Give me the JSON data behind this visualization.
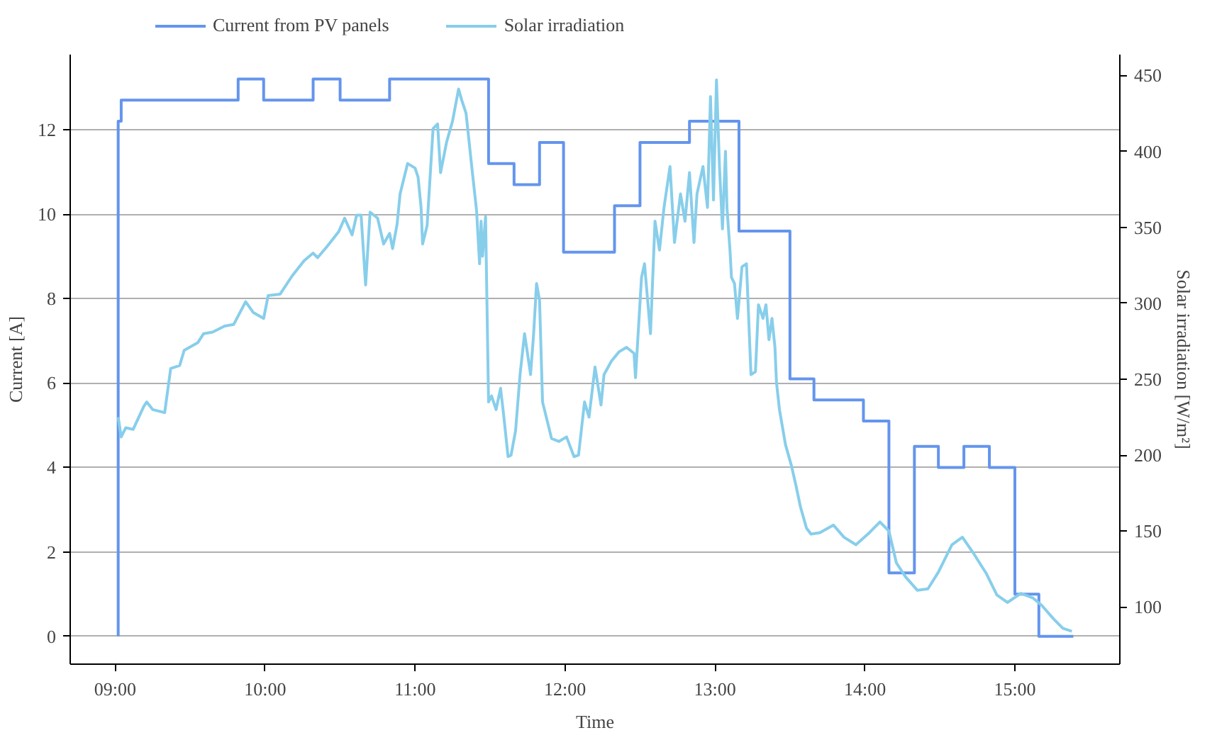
{
  "chart_data": {
    "type": "line",
    "xlabel": "Time",
    "ylabel": "Current [A]",
    "y2label": "Solar irradiation [W/m²]",
    "xlim": [
      8.7,
      15.7
    ],
    "xticks": [
      {
        "value": 9,
        "label": "09:00"
      },
      {
        "value": 10,
        "label": "10:00"
      },
      {
        "value": 11,
        "label": "11:00"
      },
      {
        "value": 12,
        "label": "12:00"
      },
      {
        "value": 13,
        "label": "13:00"
      },
      {
        "value": 14,
        "label": "14:00"
      },
      {
        "value": 15,
        "label": "15:00"
      }
    ],
    "ylim": [
      -0.66,
      13.78
    ],
    "yticks": [
      0,
      2,
      4,
      6,
      8,
      10,
      12
    ],
    "y2lim": [
      62.4,
      463.7
    ],
    "y2ticks": [
      100,
      150,
      200,
      250,
      300,
      350,
      400,
      450
    ],
    "grid": "y",
    "legend": "top",
    "series": [
      {
        "name": "Current from PV panels",
        "color": "#6495ed",
        "type": "step",
        "x": [
          9.02,
          9.02,
          9.04,
          9.82,
          9.99,
          10.32,
          10.5,
          10.83,
          11.49,
          11.66,
          11.83,
          11.99,
          12.33,
          12.5,
          12.83,
          13.16,
          13.5,
          13.66,
          13.99,
          14.16,
          14.33,
          14.49,
          14.66,
          14.83,
          15.0,
          15.16,
          15.39
        ],
        "values": [
          0,
          12.2,
          12.7,
          13.2,
          12.7,
          13.2,
          12.7,
          13.2,
          11.2,
          10.7,
          11.7,
          9.1,
          10.2,
          11.7,
          12.2,
          9.6,
          6.1,
          5.6,
          5.1,
          1.5,
          4.5,
          4.0,
          4.5,
          4.0,
          1.0,
          0,
          0
        ]
      },
      {
        "name": "Solar irradiation",
        "color": "#87ceeb",
        "axis": "y2",
        "x": [
          9.02,
          9.04,
          9.07,
          9.12,
          9.19,
          9.21,
          9.25,
          9.33,
          9.37,
          9.43,
          9.46,
          9.55,
          9.59,
          9.65,
          9.73,
          9.79,
          9.87,
          9.92,
          9.99,
          10.02,
          10.1,
          10.18,
          10.26,
          10.32,
          10.35,
          10.41,
          10.49,
          10.53,
          10.58,
          10.61,
          10.64,
          10.67,
          10.7,
          10.75,
          10.79,
          10.83,
          10.85,
          10.88,
          10.9,
          10.95,
          11.0,
          11.02,
          11.04,
          11.05,
          11.08,
          11.12,
          11.15,
          11.17,
          11.21,
          11.25,
          11.29,
          11.31,
          11.34,
          11.38,
          11.41,
          11.43,
          11.44,
          11.45,
          11.47,
          11.49,
          11.51,
          11.54,
          11.57,
          11.59,
          11.62,
          11.64,
          11.67,
          11.7,
          11.73,
          11.76,
          11.77,
          11.79,
          11.81,
          11.83,
          11.85,
          11.91,
          11.96,
          12.01,
          12.06,
          12.09,
          12.13,
          12.16,
          12.2,
          12.24,
          12.26,
          12.31,
          12.36,
          12.41,
          12.46,
          12.47,
          12.51,
          12.53,
          12.55,
          12.57,
          12.6,
          12.63,
          12.66,
          12.7,
          12.73,
          12.77,
          12.8,
          12.83,
          12.86,
          12.88,
          12.92,
          12.95,
          12.97,
          12.99,
          13.01,
          13.03,
          13.05,
          13.07,
          13.08,
          13.1,
          13.11,
          13.13,
          13.15,
          13.18,
          13.21,
          13.24,
          13.27,
          13.29,
          13.32,
          13.34,
          13.36,
          13.38,
          13.4,
          13.41,
          13.43,
          13.47,
          13.51,
          13.54,
          13.57,
          13.61,
          13.64,
          13.7,
          13.79,
          13.86,
          13.94,
          14.03,
          14.1,
          14.16,
          14.21,
          14.27,
          14.35,
          14.42,
          14.49,
          14.58,
          14.65,
          14.72,
          14.81,
          14.88,
          14.95,
          15.04,
          15.12,
          15.18,
          15.26,
          15.32,
          15.38
        ],
        "values": [
          225,
          212,
          218,
          217,
          232,
          235,
          230,
          228,
          257,
          259,
          269,
          274,
          280,
          281,
          285,
          286,
          301,
          294,
          290,
          305,
          306,
          318,
          328,
          333,
          330,
          337,
          347,
          356,
          345,
          358,
          358,
          312,
          360,
          356,
          339,
          346,
          336,
          352,
          372,
          392,
          389,
          383,
          363,
          339,
          351,
          415,
          418,
          386,
          406,
          420,
          441,
          434,
          425,
          388,
          361,
          326,
          354,
          331,
          357,
          235,
          239,
          230,
          244,
          227,
          199,
          200,
          216,
          253,
          280,
          260,
          253,
          279,
          313,
          302,
          235,
          211,
          209,
          212,
          199,
          200,
          235,
          225,
          258,
          233,
          253,
          262,
          268,
          271,
          267,
          251,
          317,
          326,
          303,
          280,
          354,
          335,
          363,
          390,
          340,
          372,
          354,
          386,
          340,
          372,
          390,
          363,
          436,
          368,
          447,
          390,
          349,
          400,
          363,
          335,
          317,
          313,
          290,
          324,
          326,
          253,
          255,
          299,
          290,
          299,
          276,
          290,
          271,
          248,
          230,
          207,
          193,
          180,
          166,
          152,
          148,
          149,
          154,
          146,
          141,
          149,
          156,
          150,
          129,
          120,
          111,
          112,
          123,
          141,
          146,
          136,
          122,
          108,
          103,
          109,
          106,
          101,
          92,
          86,
          84
        ]
      }
    ]
  }
}
